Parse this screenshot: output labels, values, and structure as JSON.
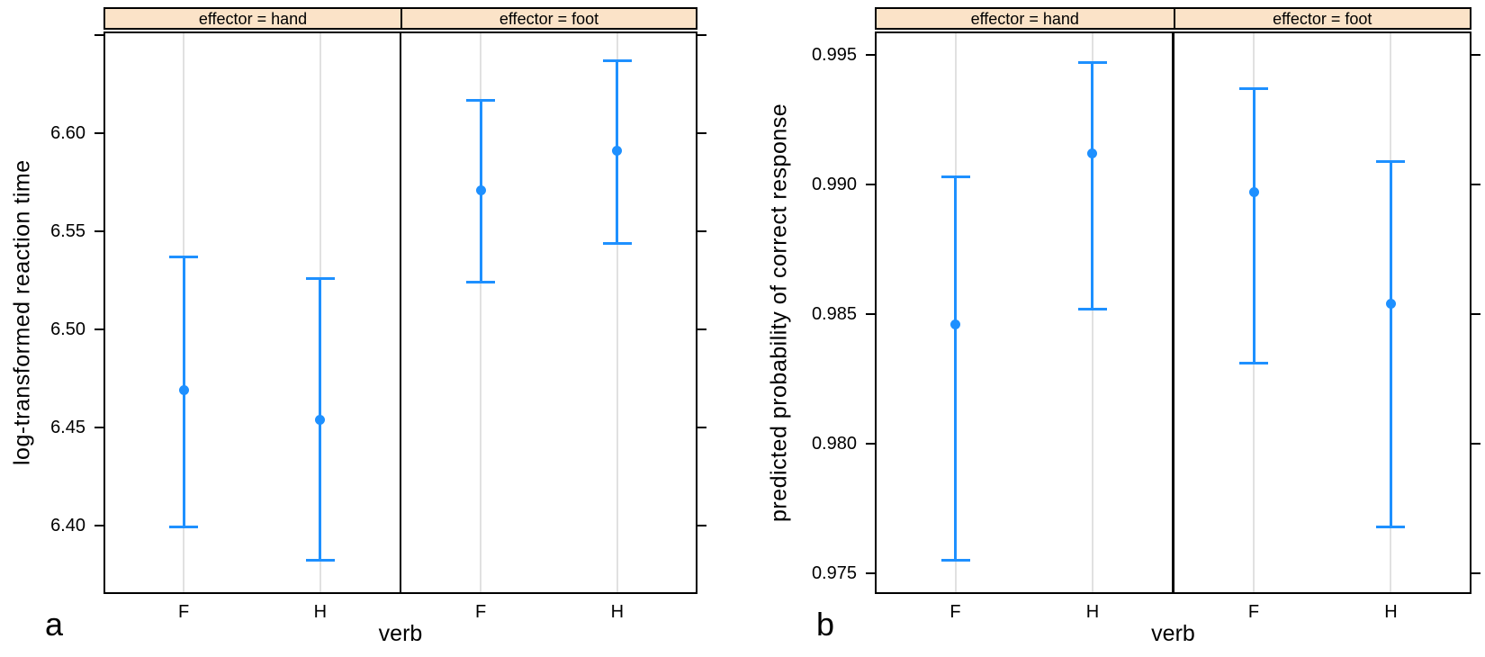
{
  "colors": {
    "accent_blue": "#1E90FF",
    "strip_background": "#FBE3C8",
    "gridline_gray": "#E1E1E1",
    "axis_black": "#000000"
  },
  "chart_data": [
    {
      "type": "scatter",
      "subtype": "point-with-error-bars",
      "panel_label": "a",
      "title": "",
      "xlabel": "verb",
      "ylabel": "log-transformed reaction time",
      "categories": [
        "F",
        "H"
      ],
      "ylim": [
        6.365,
        6.652
      ],
      "grid": "vertical category gridlines only",
      "legend": "none",
      "yticks": [
        {
          "value": 6.4,
          "label": "6.40"
        },
        {
          "value": 6.45,
          "label": "6.45"
        },
        {
          "value": 6.5,
          "label": "6.50"
        },
        {
          "value": 6.55,
          "label": "6.55"
        },
        {
          "value": 6.6,
          "label": "6.60"
        },
        {
          "value": 6.65,
          "label": ""
        }
      ],
      "facets": [
        {
          "strip": "effector = hand",
          "points": [
            {
              "verb": "F",
              "mean": 6.469,
              "lower": 6.399,
              "upper": 6.537
            },
            {
              "verb": "H",
              "mean": 6.454,
              "lower": 6.382,
              "upper": 6.526
            }
          ]
        },
        {
          "strip": "effector = foot",
          "points": [
            {
              "verb": "F",
              "mean": 6.571,
              "lower": 6.524,
              "upper": 6.617
            },
            {
              "verb": "H",
              "mean": 6.591,
              "lower": 6.544,
              "upper": 6.637
            }
          ]
        }
      ]
    },
    {
      "type": "scatter",
      "subtype": "point-with-error-bars",
      "panel_label": "b",
      "title": "",
      "xlabel": "verb",
      "ylabel": "predicted probability of correct response",
      "categories": [
        "F",
        "H"
      ],
      "ylim": [
        0.9742,
        0.9959
      ],
      "grid": "vertical category gridlines only",
      "legend": "none",
      "yticks": [
        {
          "value": 0.975,
          "label": "0.975"
        },
        {
          "value": 0.98,
          "label": "0.980"
        },
        {
          "value": 0.985,
          "label": "0.985"
        },
        {
          "value": 0.99,
          "label": "0.990"
        },
        {
          "value": 0.995,
          "label": "0.995"
        }
      ],
      "facets": [
        {
          "strip": "effector = hand",
          "points": [
            {
              "verb": "F",
              "mean": 0.9846,
              "lower": 0.9755,
              "upper": 0.9903
            },
            {
              "verb": "H",
              "mean": 0.9912,
              "lower": 0.9852,
              "upper": 0.9947
            }
          ]
        },
        {
          "strip": "effector = foot",
          "points": [
            {
              "verb": "F",
              "mean": 0.9897,
              "lower": 0.9831,
              "upper": 0.9937
            },
            {
              "verb": "H",
              "mean": 0.9854,
              "lower": 0.9768,
              "upper": 0.9909
            }
          ]
        }
      ]
    }
  ]
}
